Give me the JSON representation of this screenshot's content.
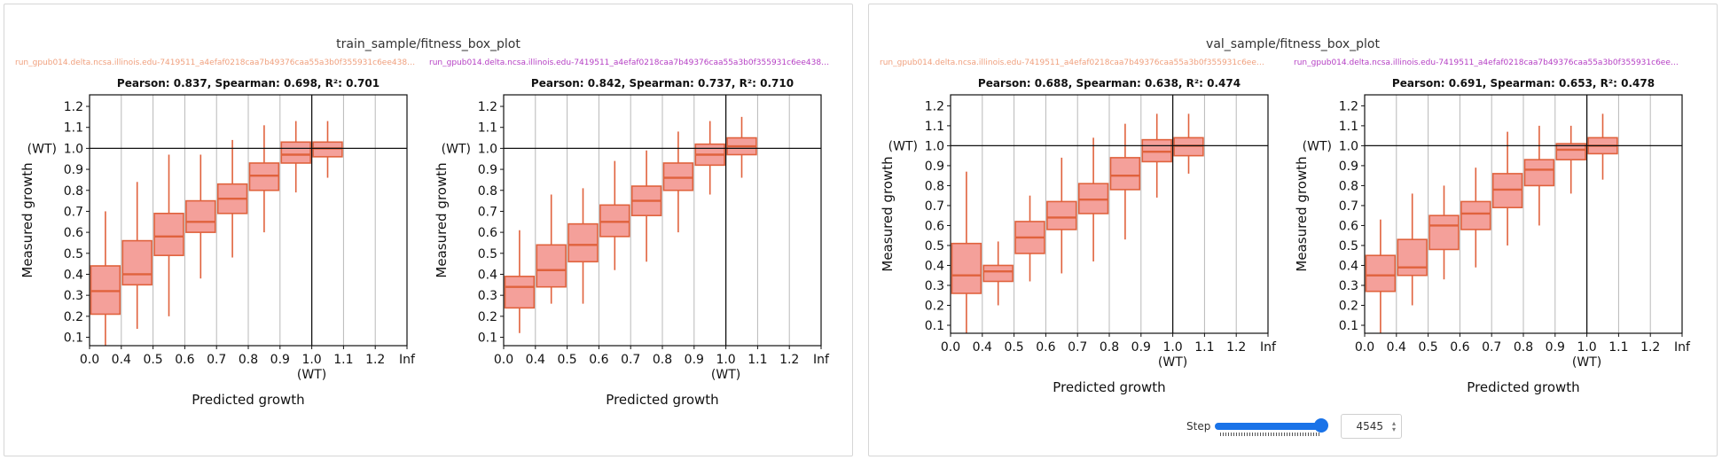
{
  "sections": [
    {
      "title": "train_sample/fitness_box_plot"
    },
    {
      "title": "val_sample/fitness_box_plot"
    }
  ],
  "step": {
    "label": "Step",
    "value": "4545",
    "slider_fraction": 1.0
  },
  "colors": {
    "box_fill": "#f4a09a",
    "box_stroke": "#e0623d",
    "median": "#e0623d",
    "whisker": "#e0623d",
    "accent": "#1a73e8"
  },
  "chart_data": [
    {
      "type": "box",
      "section": 0,
      "run_label": "run_gpub014.delta.ncsa.illinois.edu-7419511_a4efaf0218caa7b49376caa55a3b0f355931c6ee4386097b4...",
      "run_color": "#f0a07e",
      "subtitle": "Pearson: 0.837, Spearman: 0.698, R²: 0.701",
      "xlabel": "Predicted growth",
      "ylabel": "Measured growth",
      "x_ticks": [
        "0.0",
        "0.4",
        "0.5",
        "0.6",
        "0.7",
        "0.8",
        "0.9",
        "1.0",
        "1.1",
        "1.2",
        "Inf"
      ],
      "x_wt_label": "(WT)",
      "y_ticks": [
        "0.1",
        "0.2",
        "0.3",
        "0.4",
        "0.5",
        "0.6",
        "0.7",
        "0.8",
        "0.9",
        "1.0",
        "1.1",
        "1.2"
      ],
      "y_wt_label": "(WT)",
      "ylim": [
        0.06,
        1.255
      ],
      "boxes": [
        {
          "bin": "0.0–0.4",
          "wlo": 0.06,
          "q1": 0.21,
          "med": 0.32,
          "q3": 0.44,
          "whi": 0.7
        },
        {
          "bin": "0.4–0.5",
          "wlo": 0.14,
          "q1": 0.35,
          "med": 0.4,
          "q3": 0.56,
          "whi": 0.84
        },
        {
          "bin": "0.5–0.6",
          "wlo": 0.2,
          "q1": 0.49,
          "med": 0.58,
          "q3": 0.69,
          "whi": 0.97
        },
        {
          "bin": "0.6–0.7",
          "wlo": 0.38,
          "q1": 0.6,
          "med": 0.65,
          "q3": 0.75,
          "whi": 0.97
        },
        {
          "bin": "0.7–0.8",
          "wlo": 0.48,
          "q1": 0.69,
          "med": 0.76,
          "q3": 0.83,
          "whi": 1.04
        },
        {
          "bin": "0.8–0.9",
          "wlo": 0.6,
          "q1": 0.8,
          "med": 0.87,
          "q3": 0.93,
          "whi": 1.11
        },
        {
          "bin": "0.9–1.0",
          "wlo": 0.79,
          "q1": 0.93,
          "med": 0.97,
          "q3": 1.03,
          "whi": 1.13
        },
        {
          "bin": "1.0–1.1",
          "wlo": 0.86,
          "q1": 0.96,
          "med": 1.0,
          "q3": 1.03,
          "whi": 1.13
        }
      ]
    },
    {
      "type": "box",
      "section": 0,
      "run_label": "run_gpub014.delta.ncsa.illinois.edu-7419511_a4efaf0218caa7b49376caa55a3b0f355931c6ee4386097b4...",
      "run_color": "#b53fc4",
      "subtitle": "Pearson: 0.842, Spearman: 0.737, R²: 0.710",
      "xlabel": "Predicted growth",
      "ylabel": "Measured growth",
      "x_ticks": [
        "0.0",
        "0.4",
        "0.5",
        "0.6",
        "0.7",
        "0.8",
        "0.9",
        "1.0",
        "1.1",
        "1.2",
        "Inf"
      ],
      "x_wt_label": "(WT)",
      "y_ticks": [
        "0.1",
        "0.2",
        "0.3",
        "0.4",
        "0.5",
        "0.6",
        "0.7",
        "0.8",
        "0.9",
        "1.0",
        "1.1",
        "1.2"
      ],
      "y_wt_label": "(WT)",
      "ylim": [
        0.06,
        1.255
      ],
      "boxes": [
        {
          "bin": "0.0–0.4",
          "wlo": 0.12,
          "q1": 0.24,
          "med": 0.34,
          "q3": 0.39,
          "whi": 0.61
        },
        {
          "bin": "0.4–0.5",
          "wlo": 0.26,
          "q1": 0.34,
          "med": 0.42,
          "q3": 0.54,
          "whi": 0.78
        },
        {
          "bin": "0.5–0.6",
          "wlo": 0.26,
          "q1": 0.46,
          "med": 0.54,
          "q3": 0.64,
          "whi": 0.81
        },
        {
          "bin": "0.6–0.7",
          "wlo": 0.42,
          "q1": 0.58,
          "med": 0.65,
          "q3": 0.73,
          "whi": 0.94
        },
        {
          "bin": "0.7–0.8",
          "wlo": 0.46,
          "q1": 0.68,
          "med": 0.75,
          "q3": 0.82,
          "whi": 0.99
        },
        {
          "bin": "0.8–0.9",
          "wlo": 0.6,
          "q1": 0.8,
          "med": 0.86,
          "q3": 0.93,
          "whi": 1.08
        },
        {
          "bin": "0.9–1.0",
          "wlo": 0.78,
          "q1": 0.92,
          "med": 0.97,
          "q3": 1.02,
          "whi": 1.13
        },
        {
          "bin": "1.0–1.1",
          "wlo": 0.86,
          "q1": 0.97,
          "med": 1.01,
          "q3": 1.05,
          "whi": 1.15
        }
      ]
    },
    {
      "type": "box",
      "section": 1,
      "run_label": "run_gpub014.delta.ncsa.illinois.edu-7419511_a4efaf0218caa7b49376caa55a3b0f355931c6ee438609...",
      "run_color": "#f0a07e",
      "subtitle": "Pearson: 0.688, Spearman: 0.638, R²: 0.474",
      "xlabel": "Predicted growth",
      "ylabel": "Measured growth",
      "x_ticks": [
        "0.0",
        "0.4",
        "0.5",
        "0.6",
        "0.7",
        "0.8",
        "0.9",
        "1.0",
        "1.1",
        "1.2",
        "Inf"
      ],
      "x_wt_label": "(WT)",
      "y_ticks": [
        "0.1",
        "0.2",
        "0.3",
        "0.4",
        "0.5",
        "0.6",
        "0.7",
        "0.8",
        "0.9",
        "1.0",
        "1.1",
        "1.2"
      ],
      "y_wt_label": "(WT)",
      "ylim": [
        0.06,
        1.255
      ],
      "boxes": [
        {
          "bin": "0.0–0.4",
          "wlo": 0.06,
          "q1": 0.26,
          "med": 0.35,
          "q3": 0.51,
          "whi": 0.87
        },
        {
          "bin": "0.4–0.5",
          "wlo": 0.2,
          "q1": 0.32,
          "med": 0.37,
          "q3": 0.4,
          "whi": 0.52
        },
        {
          "bin": "0.5–0.6",
          "wlo": 0.32,
          "q1": 0.46,
          "med": 0.54,
          "q3": 0.62,
          "whi": 0.75
        },
        {
          "bin": "0.6–0.7",
          "wlo": 0.36,
          "q1": 0.58,
          "med": 0.64,
          "q3": 0.72,
          "whi": 0.94
        },
        {
          "bin": "0.7–0.8",
          "wlo": 0.42,
          "q1": 0.66,
          "med": 0.73,
          "q3": 0.81,
          "whi": 1.04
        },
        {
          "bin": "0.8–0.9",
          "wlo": 0.53,
          "q1": 0.78,
          "med": 0.85,
          "q3": 0.94,
          "whi": 1.11
        },
        {
          "bin": "0.9–1.0",
          "wlo": 0.74,
          "q1": 0.92,
          "med": 0.97,
          "q3": 1.03,
          "whi": 1.16
        },
        {
          "bin": "1.0–1.1",
          "wlo": 0.86,
          "q1": 0.95,
          "med": 1.0,
          "q3": 1.04,
          "whi": 1.16
        }
      ]
    },
    {
      "type": "box",
      "section": 1,
      "run_label": "run_gpub014.delta.ncsa.illinois.edu-7419511_a4efaf0218caa7b49376caa55a3b0f355931c6ee438609...",
      "run_color": "#b53fc4",
      "subtitle": "Pearson: 0.691, Spearman: 0.653, R²: 0.478",
      "xlabel": "Predicted growth",
      "ylabel": "Measured growth",
      "x_ticks": [
        "0.0",
        "0.4",
        "0.5",
        "0.6",
        "0.7",
        "0.8",
        "0.9",
        "1.0",
        "1.1",
        "1.2",
        "Inf"
      ],
      "x_wt_label": "(WT)",
      "y_ticks": [
        "0.1",
        "0.2",
        "0.3",
        "0.4",
        "0.5",
        "0.6",
        "0.7",
        "0.8",
        "0.9",
        "1.0",
        "1.1",
        "1.2"
      ],
      "y_wt_label": "(WT)",
      "ylim": [
        0.06,
        1.255
      ],
      "boxes": [
        {
          "bin": "0.0–0.4",
          "wlo": 0.06,
          "q1": 0.27,
          "med": 0.35,
          "q3": 0.45,
          "whi": 0.63
        },
        {
          "bin": "0.4–0.5",
          "wlo": 0.2,
          "q1": 0.35,
          "med": 0.39,
          "q3": 0.53,
          "whi": 0.76
        },
        {
          "bin": "0.5–0.6",
          "wlo": 0.33,
          "q1": 0.48,
          "med": 0.6,
          "q3": 0.65,
          "whi": 0.8
        },
        {
          "bin": "0.6–0.7",
          "wlo": 0.39,
          "q1": 0.58,
          "med": 0.66,
          "q3": 0.72,
          "whi": 0.89
        },
        {
          "bin": "0.7–0.8",
          "wlo": 0.5,
          "q1": 0.69,
          "med": 0.78,
          "q3": 0.86,
          "whi": 1.07
        },
        {
          "bin": "0.8–0.9",
          "wlo": 0.6,
          "q1": 0.8,
          "med": 0.88,
          "q3": 0.93,
          "whi": 1.1
        },
        {
          "bin": "0.9–1.0",
          "wlo": 0.76,
          "q1": 0.93,
          "med": 0.98,
          "q3": 1.01,
          "whi": 1.1
        },
        {
          "bin": "1.0–1.1",
          "wlo": 0.83,
          "q1": 0.96,
          "med": 1.0,
          "q3": 1.04,
          "whi": 1.16
        }
      ]
    }
  ]
}
